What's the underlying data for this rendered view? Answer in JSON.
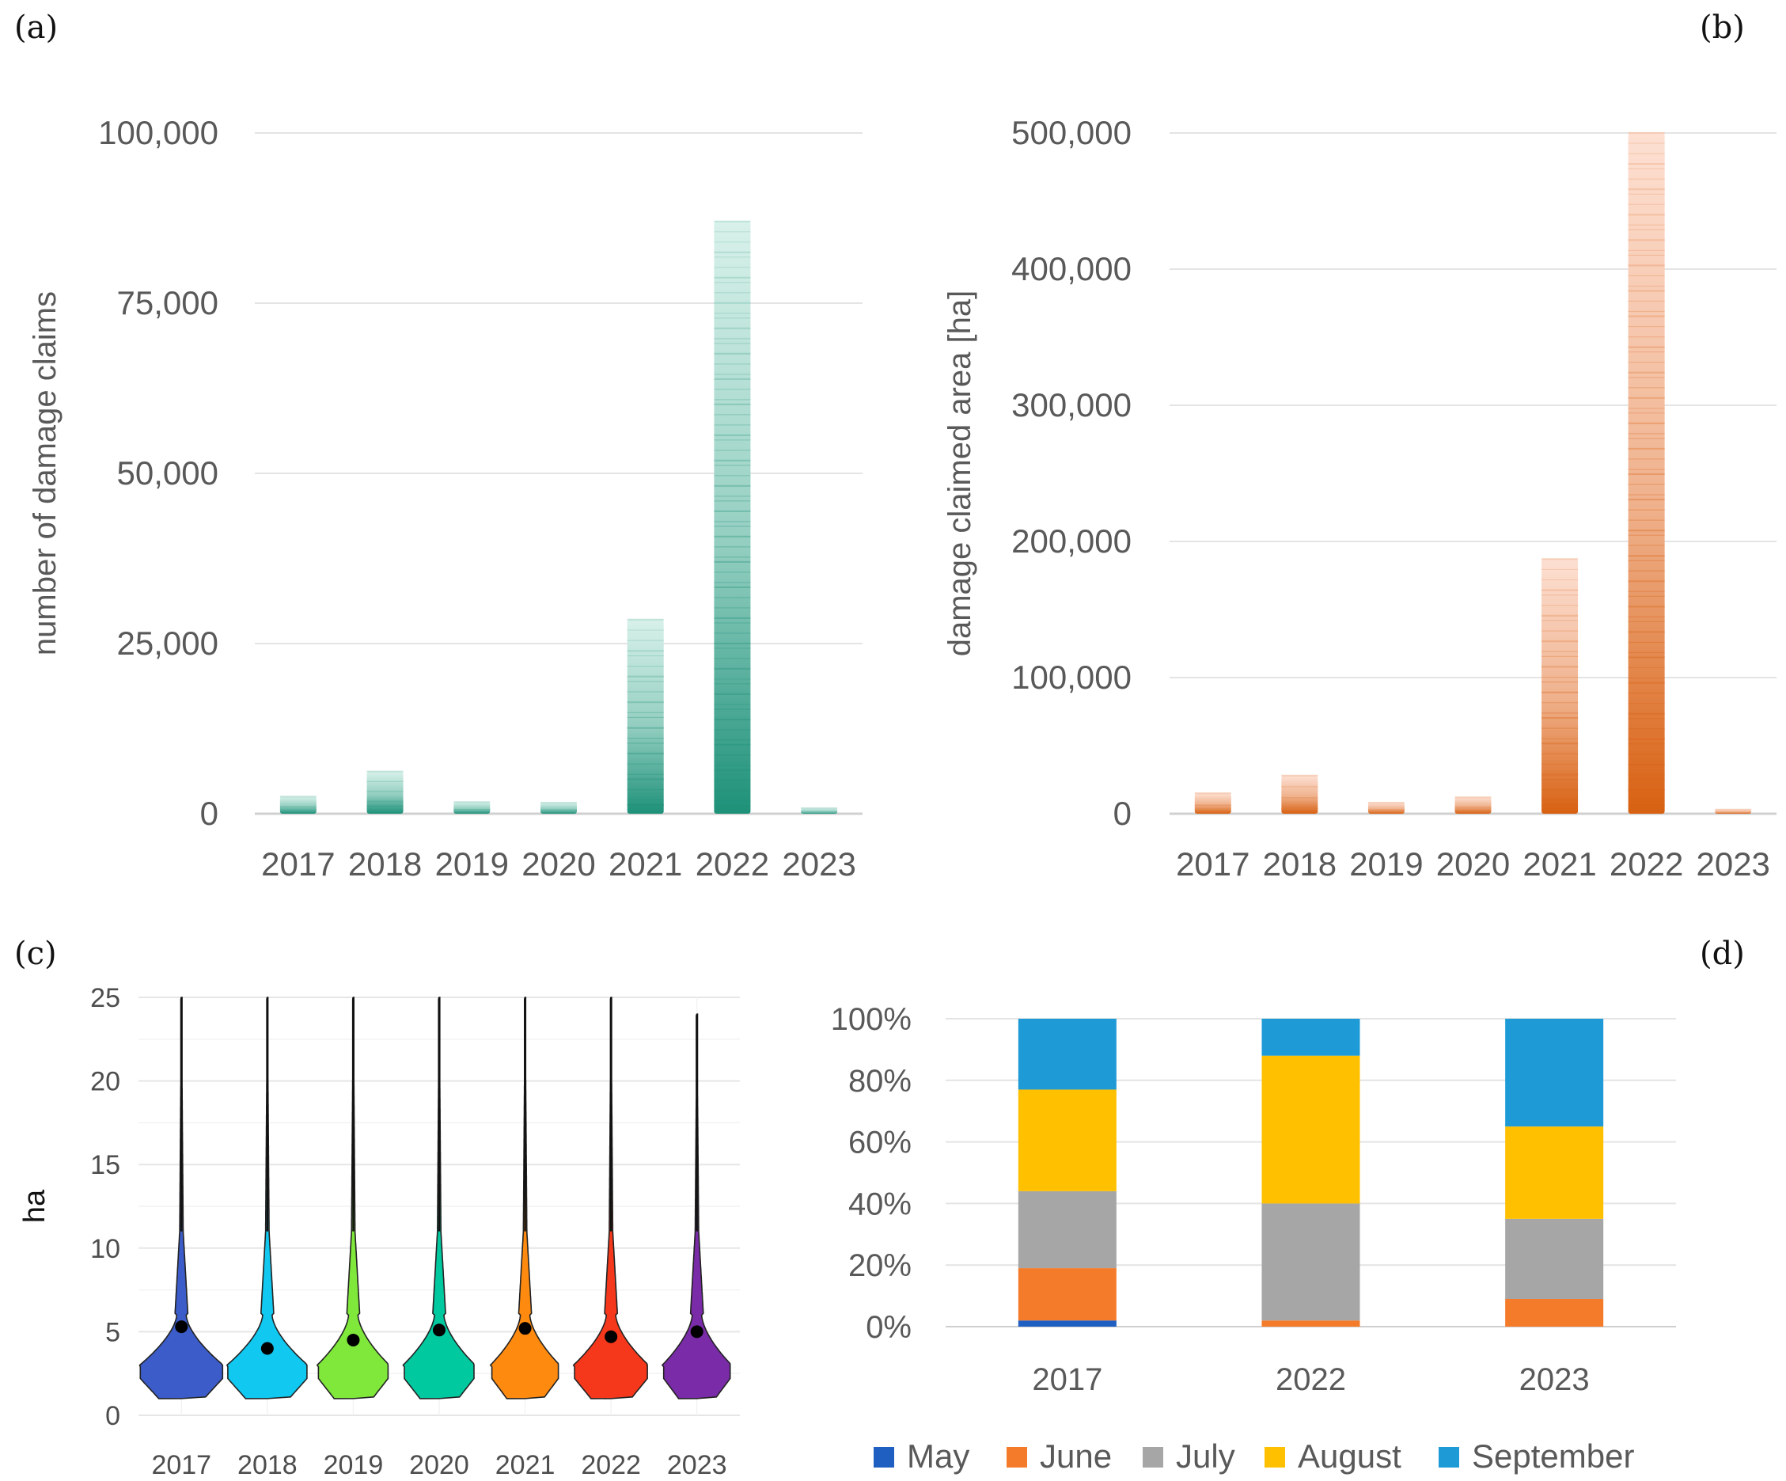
{
  "chart_data": [
    {
      "panel": "(a)",
      "type": "bar",
      "categories": [
        "2017",
        "2018",
        "2019",
        "2020",
        "2021",
        "2022",
        "2023"
      ],
      "values": [
        2500,
        6200,
        1700,
        1600,
        28500,
        87000,
        800
      ],
      "ylabel": "number of damage claims",
      "ylim": [
        0,
        100000
      ],
      "yticks": [
        "0",
        "25,000",
        "50,000",
        "75,000",
        "100,000"
      ],
      "grid": true,
      "colors": {
        "light": "#d8f1ea",
        "dark": "#148c73"
      }
    },
    {
      "panel": "(b)",
      "type": "bar",
      "categories": [
        "2017",
        "2018",
        "2019",
        "2020",
        "2021",
        "2022",
        "2023"
      ],
      "values": [
        15000,
        28000,
        8000,
        12000,
        187000,
        500000,
        3000
      ],
      "ylabel": "damage claimed area [ha]",
      "ylim": [
        0,
        500000
      ],
      "yticks": [
        "0",
        "100,000",
        "200,000",
        "300,000",
        "400,000",
        "500,000"
      ],
      "grid": true,
      "colors": {
        "light": "#fde0d3",
        "dark": "#d65a08"
      }
    },
    {
      "panel": "(c)",
      "type": "violin",
      "categories": [
        "2017",
        "2018",
        "2019",
        "2020",
        "2021",
        "2022",
        "2023"
      ],
      "means": [
        5.3,
        4.0,
        4.5,
        5.1,
        5.2,
        4.7,
        5.0
      ],
      "max": [
        25,
        25,
        25,
        25,
        25,
        25,
        24
      ],
      "colors": [
        "#3b5cc9",
        "#10c8f0",
        "#7fe83a",
        "#00c9a0",
        "#ff8a10",
        "#f5381b",
        "#7a2ba8"
      ],
      "ylabel": "ha",
      "ylim": [
        0,
        25
      ],
      "yticks": [
        "0",
        "5",
        "10",
        "15",
        "20",
        "25"
      ],
      "grid": true
    },
    {
      "panel": "(d)",
      "type": "bar",
      "stacked": true,
      "categories": [
        "2017",
        "2022",
        "2023"
      ],
      "series": [
        {
          "name": "May",
          "values": [
            2,
            0,
            0
          ],
          "color": "#1f5fc2"
        },
        {
          "name": "June",
          "values": [
            17,
            2,
            9
          ],
          "color": "#f47b2a"
        },
        {
          "name": "July",
          "values": [
            25,
            38,
            26
          ],
          "color": "#a6a6a6"
        },
        {
          "name": "August",
          "values": [
            33,
            48,
            30
          ],
          "color": "#ffc000"
        },
        {
          "name": "September",
          "values": [
            23,
            12,
            35
          ],
          "color": "#1e9ad6"
        }
      ],
      "ylim": [
        0,
        100
      ],
      "yticks": [
        "0%",
        "20%",
        "40%",
        "60%",
        "80%",
        "100%"
      ],
      "grid": true,
      "legend": "bottom"
    }
  ]
}
